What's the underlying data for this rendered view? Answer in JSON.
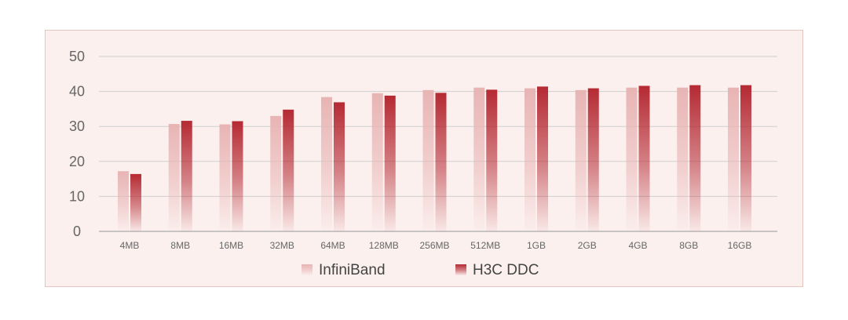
{
  "chart_data": {
    "type": "bar",
    "title": "",
    "xlabel": "",
    "ylabel": "",
    "ylim": [
      0,
      50
    ],
    "yticks": [
      "0",
      "10",
      "20",
      "30",
      "40",
      "50"
    ],
    "grid": true,
    "legend_position": "bottom-center",
    "categories": [
      "4MB",
      "8MB",
      "16MB",
      "32MB",
      "64MB",
      "128MB",
      "256MB",
      "512MB",
      "1GB",
      "2GB",
      "4GB",
      "8GB",
      "16GB"
    ],
    "series": [
      {
        "name": "InfiniBand",
        "color": "#e8b4b4",
        "values": [
          17.2,
          30.7,
          30.6,
          33.0,
          38.4,
          39.5,
          40.4,
          41.1,
          40.9,
          40.4,
          41.1,
          41.1,
          41.1
        ]
      },
      {
        "name": "H3C DDC",
        "color": "#b52a33",
        "values": [
          16.4,
          31.6,
          31.5,
          34.8,
          36.9,
          38.8,
          39.6,
          40.5,
          41.4,
          40.9,
          41.6,
          41.8,
          41.8
        ]
      }
    ]
  }
}
